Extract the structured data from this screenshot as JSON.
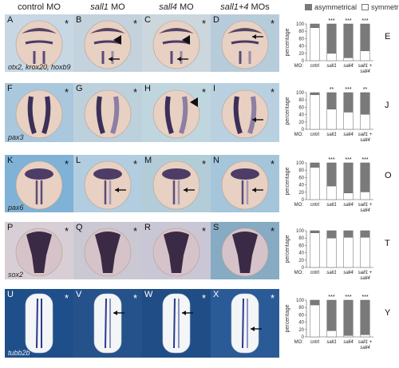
{
  "columns": [
    {
      "label": "control MO",
      "italic": false
    },
    {
      "label": "sall1",
      "suffix": " MO",
      "italic": true
    },
    {
      "label": "sall4",
      "suffix": " MO",
      "italic": true
    },
    {
      "label": "sall1+4",
      "suffix": " MOs",
      "italic": true
    }
  ],
  "legend": {
    "asymmetrical": "asymmetrical",
    "symmetrical": "symmetrical",
    "asym_color": "#7a7a7a",
    "sym_color": "#ffffff"
  },
  "rows": [
    {
      "marker": "otx2, krox20, hoxb9",
      "panels": [
        "A",
        "B",
        "C",
        "D"
      ],
      "chart_letter": "E",
      "bg": [
        "#c7d7e3",
        "#c3d2dc",
        "#cbd6dd",
        "#b7ccdb"
      ]
    },
    {
      "marker": "pax3",
      "panels": [
        "F",
        "G",
        "H",
        "I"
      ],
      "chart_letter": "J",
      "bg": [
        "#a9c8dd",
        "#bdd1dc",
        "#bfd6df",
        "#b9d0e1"
      ]
    },
    {
      "marker": "pax6",
      "panels": [
        "K",
        "L",
        "M",
        "N"
      ],
      "chart_letter": "O",
      "bg": [
        "#7fb2d6",
        "#b2cde0",
        "#b3cdd8",
        "#a5c5da"
      ]
    },
    {
      "marker": "sox2",
      "panels": [
        "P",
        "Q",
        "R",
        "S"
      ],
      "chart_letter": "T",
      "bg": [
        "#d8cfd6",
        "#cac9d3",
        "#c9c7d6",
        "#86abc3"
      ]
    },
    {
      "marker": "tubb2b",
      "panels": [
        "U",
        "V",
        "W",
        "X"
      ],
      "chart_letter": "Y",
      "bg": [
        "#1f4f8a",
        "#26528b",
        "#214d86",
        "#2a5b96"
      ]
    }
  ],
  "chart_data": [
    {
      "type": "bar",
      "stacked": true,
      "panel": "E",
      "categories": [
        "cntrl",
        "sall1",
        "sall4",
        "sall1 + sall4"
      ],
      "series": [
        {
          "name": "symmetrical",
          "values": [
            90,
            20,
            8,
            27
          ]
        },
        {
          "name": "asymmetrical",
          "values": [
            10,
            80,
            92,
            73
          ]
        }
      ],
      "significance": [
        "",
        "***",
        "***",
        "***"
      ],
      "ylabel": "percentage",
      "xlabel_prefix": "MO:",
      "ylim": [
        0,
        100
      ],
      "yticks": [
        0,
        20,
        40,
        60,
        80,
        100
      ]
    },
    {
      "type": "bar",
      "stacked": true,
      "panel": "J",
      "categories": [
        "cntrl",
        "sall1",
        "sall4",
        "sall1 + sall4"
      ],
      "series": [
        {
          "name": "symmetrical",
          "values": [
            94,
            55,
            47,
            41
          ]
        },
        {
          "name": "asymmetrical",
          "values": [
            6,
            45,
            53,
            59
          ]
        }
      ],
      "significance": [
        "",
        "**",
        "***",
        "**"
      ],
      "ylabel": "percentage",
      "xlabel_prefix": "MO:",
      "ylim": [
        0,
        100
      ],
      "yticks": [
        0,
        20,
        40,
        60,
        80,
        100
      ]
    },
    {
      "type": "bar",
      "stacked": true,
      "panel": "O",
      "categories": [
        "cntrl",
        "sall1",
        "sall4",
        "sall1 + sall4"
      ],
      "series": [
        {
          "name": "symmetrical",
          "values": [
            88,
            37,
            18,
            21
          ]
        },
        {
          "name": "asymmetrical",
          "values": [
            12,
            63,
            82,
            79
          ]
        }
      ],
      "significance": [
        "",
        "***",
        "***",
        "***"
      ],
      "ylabel": "percentage",
      "xlabel_prefix": "MO:",
      "ylim": [
        0,
        100
      ],
      "yticks": [
        0,
        20,
        40,
        60,
        80,
        100
      ]
    },
    {
      "type": "bar",
      "stacked": true,
      "panel": "T",
      "categories": [
        "cntrl",
        "sall1",
        "sall4",
        "sall1 + sall4"
      ],
      "series": [
        {
          "name": "symmetrical",
          "values": [
            94,
            80,
            82,
            82
          ]
        },
        {
          "name": "asymmetrical",
          "values": [
            6,
            20,
            18,
            18
          ]
        }
      ],
      "significance": [
        "",
        "",
        "",
        ""
      ],
      "ylabel": "percentage",
      "xlabel_prefix": "MO:",
      "ylim": [
        0,
        100
      ],
      "yticks": [
        0,
        20,
        40,
        60,
        80,
        100
      ]
    },
    {
      "type": "bar",
      "stacked": true,
      "panel": "Y",
      "categories": [
        "cntrl",
        "sall1",
        "sall4",
        "sall1 + sall4"
      ],
      "series": [
        {
          "name": "symmetrical",
          "values": [
            87,
            17,
            4,
            6
          ]
        },
        {
          "name": "asymmetrical",
          "values": [
            13,
            83,
            96,
            94
          ]
        }
      ],
      "significance": [
        "",
        "***",
        "***",
        "***"
      ],
      "ylabel": "percentage",
      "xlabel_prefix": "MO:",
      "ylim": [
        0,
        100
      ],
      "yticks": [
        0,
        20,
        40,
        60,
        80,
        100
      ]
    }
  ]
}
